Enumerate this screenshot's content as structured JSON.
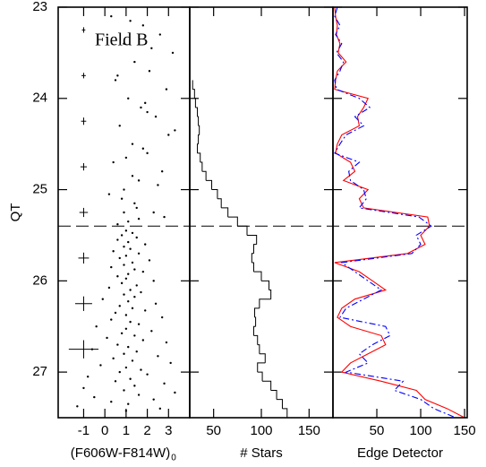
{
  "chart_data": [
    {
      "type": "scatter",
      "ylabel": "QT",
      "xlabel": "(F606W-F814W)",
      "xlabel_sub": "0",
      "annotation": "Field B",
      "xlim": [
        -2.2,
        4
      ],
      "ylim": [
        23,
        27.5
      ],
      "y_inverted": true,
      "xticks": [
        -1,
        0,
        1,
        2,
        3
      ],
      "yticks": [
        23,
        24,
        25,
        26,
        27
      ],
      "hline": 25.4,
      "color": "#000000",
      "x": [
        0.3,
        1.8,
        2.6,
        0.9,
        3.2,
        1.4,
        2.1,
        0.5,
        2.9,
        1.1,
        1.7,
        2.4,
        0.7,
        3.0,
        1.3,
        2.0,
        0.4,
        2.7,
        1.6,
        0.9,
        1.2,
        2.2,
        0.6,
        1.9,
        3.3,
        1.0,
        2.5,
        0.8,
        1.5,
        2.8,
        0.2,
        1.4,
        2.3,
        1.1,
        0.6,
        1.8,
        2.0,
        1.3,
        0.9,
        1.6,
        1.0,
        1.3,
        0.8,
        1.5,
        0.6,
        1.1,
        1.9,
        0.9,
        1.2,
        0.4,
        1.6,
        1.0,
        0.7,
        2.1,
        1.3,
        0.9,
        0.3,
        1.4,
        1.8,
        1.1,
        0.6,
        1.0,
        2.3,
        0.8,
        1.5,
        0.2,
        1.2,
        1.7,
        0.9,
        1.4,
        -0.1,
        1.1,
        2.4,
        0.7,
        1.3,
        1.9,
        0.5,
        1.0,
        2.7,
        0.3,
        1.2,
        1.6,
        -0.4,
        1.0,
        2.2,
        0.8,
        1.4,
        0.1,
        1.8,
        2.9,
        0.6,
        1.1,
        -0.6,
        1.5,
        0.9,
        2.5,
        0.4,
        1.3,
        3.1,
        -0.2,
        1.0,
        1.7,
        0.7,
        2.0,
        -0.8,
        1.2,
        0.5,
        2.8,
        1.4,
        -1.0,
        0.9,
        3.3,
        1.6,
        -0.5,
        2.3,
        0.3,
        1.1,
        -1.3,
        2.6,
        1.0
      ],
      "values": [
        23.1,
        23.2,
        23.3,
        23.4,
        23.5,
        23.6,
        23.7,
        23.8,
        23.9,
        24.0,
        24.1,
        24.2,
        24.3,
        24.4,
        24.5,
        24.6,
        24.7,
        24.8,
        24.9,
        25.0,
        23.15,
        23.45,
        23.75,
        24.05,
        24.35,
        24.65,
        24.95,
        25.1,
        25.2,
        25.3,
        25.05,
        25.15,
        25.25,
        25.35,
        25.38,
        24.55,
        24.15,
        24.85,
        25.25,
        25.32,
        25.45,
        25.475,
        25.5,
        25.525,
        25.55,
        25.575,
        25.6,
        25.625,
        25.65,
        25.675,
        25.7,
        25.725,
        25.75,
        25.775,
        25.8,
        25.825,
        25.85,
        25.875,
        25.9,
        25.925,
        25.95,
        25.975,
        26,
        26.025,
        26.05,
        26.075,
        26.1,
        26.125,
        26.15,
        26.175,
        26.2,
        26.225,
        26.25,
        26.275,
        26.3,
        26.325,
        26.35,
        26.375,
        26.4,
        26.425,
        26.45,
        26.475,
        26.5,
        26.525,
        26.55,
        26.575,
        26.6,
        26.625,
        26.65,
        26.675,
        26.7,
        26.725,
        26.75,
        26.775,
        26.8,
        26.825,
        26.85,
        26.875,
        26.9,
        26.925,
        26.95,
        26.975,
        27,
        27.025,
        27.05,
        27.075,
        27.1,
        27.125,
        27.15,
        27.175,
        27.2,
        27.225,
        27.25,
        27.275,
        27.3,
        27.325,
        27.35,
        27.375,
        27.4,
        27.425
      ],
      "errorbars": {
        "x": [
          -1,
          -1,
          -1,
          -1,
          -1,
          -1,
          -1,
          -1
        ],
        "y": [
          23.25,
          23.75,
          24.25,
          24.75,
          25.25,
          25.75,
          26.25,
          26.75
        ],
        "xerr": [
          0.08,
          0.1,
          0.12,
          0.15,
          0.2,
          0.25,
          0.4,
          0.7
        ],
        "yerr": [
          0.03,
          0.03,
          0.04,
          0.04,
          0.05,
          0.06,
          0.08,
          0.1
        ]
      }
    },
    {
      "type": "histogram",
      "xlabel": "# Stars",
      "xlim": [
        25,
        175
      ],
      "ylim": [
        23,
        27.5
      ],
      "y_inverted": true,
      "xticks": [
        50,
        100,
        150
      ],
      "yticks": [
        23,
        24,
        25,
        26,
        27
      ],
      "color": "#000000",
      "bins": [
        23.8,
        23.9,
        24.0,
        24.1,
        24.2,
        24.3,
        24.4,
        24.5,
        24.6,
        24.7,
        24.8,
        24.9,
        25.0,
        25.1,
        25.2,
        25.3,
        25.4,
        25.5,
        25.6,
        25.7,
        25.8,
        25.9,
        26.0,
        26.1,
        26.2,
        26.3,
        26.4,
        26.5,
        26.6,
        26.7,
        26.8,
        26.9,
        27.0,
        27.1,
        27.2,
        27.3,
        27.4,
        27.5
      ],
      "values": [
        28,
        30,
        31,
        33,
        34,
        35,
        34,
        33,
        36,
        38,
        42,
        48,
        54,
        58,
        65,
        75,
        85,
        95,
        92,
        90,
        92,
        100,
        108,
        110,
        98,
        93,
        94,
        92,
        96,
        98,
        104,
        96,
        101,
        110,
        116,
        122,
        127
      ]
    },
    {
      "type": "line",
      "xlabel": "Edge Detector",
      "xlim": [
        0,
        153
      ],
      "ylim": [
        23,
        27.5
      ],
      "y_inverted": true,
      "xticks": [
        50,
        100,
        150
      ],
      "yticks": [
        23,
        24,
        25,
        26,
        27
      ],
      "y": [
        23.0,
        23.1,
        23.2,
        23.3,
        23.4,
        23.5,
        23.6,
        23.7,
        23.8,
        23.9,
        24.0,
        24.1,
        24.2,
        24.3,
        24.4,
        24.5,
        24.6,
        24.7,
        24.8,
        24.9,
        25.0,
        25.1,
        25.2,
        25.3,
        25.4,
        25.5,
        25.6,
        25.7,
        25.8,
        25.9,
        26.0,
        26.1,
        26.2,
        26.3,
        26.4,
        26.5,
        26.6,
        26.7,
        26.8,
        26.9,
        27.0,
        27.1,
        27.2,
        27.3,
        27.4,
        27.5
      ],
      "series": [
        {
          "color": "#ff0000",
          "dash": "solid",
          "values": [
            2,
            3,
            5,
            4,
            8,
            6,
            15,
            5,
            3,
            2,
            40,
            35,
            28,
            30,
            10,
            5,
            3,
            20,
            25,
            12,
            40,
            30,
            35,
            108,
            110,
            100,
            105,
            85,
            2,
            30,
            45,
            60,
            25,
            10,
            5,
            20,
            55,
            60,
            40,
            20,
            10,
            55,
            95,
            105,
            130,
            150
          ]
        },
        {
          "color": "#0000ff",
          "dash": "dashdot",
          "values": [
            5,
            2,
            8,
            3,
            10,
            4,
            12,
            8,
            2,
            4,
            30,
            42,
            25,
            35,
            15,
            8,
            2,
            30,
            18,
            20,
            35,
            38,
            30,
            98,
            112,
            95,
            100,
            90,
            10,
            25,
            40,
            55,
            35,
            15,
            8,
            60,
            65,
            45,
            30,
            40,
            15,
            80,
            70,
            100,
            115,
            140
          ]
        }
      ]
    }
  ]
}
